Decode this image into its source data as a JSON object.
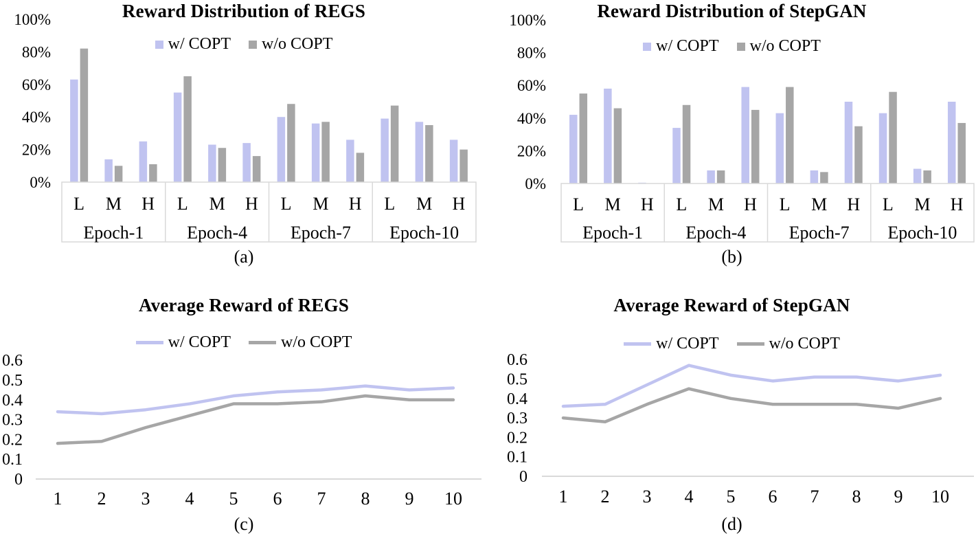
{
  "page": {
    "background": "#ffffff"
  },
  "colors": {
    "with_copt": "#c0c3f0",
    "without_copt": "#a6a6a6",
    "axis_line": "#d9d9d9",
    "text": "#000000"
  },
  "chart_data": [
    {
      "id": "a",
      "type": "bar",
      "title": "Reward Distribution of REGS",
      "caption": "(a)",
      "ylim": [
        0,
        100
      ],
      "y_ticks": [
        "0%",
        "20%",
        "40%",
        "60%",
        "80%",
        "100%"
      ],
      "groups": [
        "Epoch-1",
        "Epoch-4",
        "Epoch-7",
        "Epoch-10"
      ],
      "sub_categories": [
        "L",
        "M",
        "H"
      ],
      "value_order": "L,M,H for each epoch group in sequence",
      "legend_position": "top-inside",
      "grid": false,
      "series": [
        {
          "name": "w/ COPT",
          "values": [
            63,
            14,
            25,
            55,
            23,
            24,
            40,
            36,
            26,
            39,
            37,
            26
          ]
        },
        {
          "name": "w/o COPT",
          "values": [
            82,
            10,
            11,
            65,
            21,
            16,
            48,
            37,
            18,
            47,
            35,
            20
          ]
        }
      ]
    },
    {
      "id": "b",
      "type": "bar",
      "title": "Reward Distribution of StepGAN",
      "caption": "(b)",
      "ylim": [
        0,
        100
      ],
      "y_ticks": [
        "0%",
        "20%",
        "40%",
        "60%",
        "80%",
        "100%"
      ],
      "groups": [
        "Epoch-1",
        "Epoch-4",
        "Epoch-7",
        "Epoch-10"
      ],
      "sub_categories": [
        "L",
        "M",
        "H"
      ],
      "value_order": "L,M,H for each epoch group in sequence",
      "legend_position": "top-inside",
      "grid": false,
      "series": [
        {
          "name": "w/ COPT",
          "values": [
            42,
            58,
            0.5,
            34,
            8,
            59,
            43,
            8,
            50,
            43,
            9,
            50
          ]
        },
        {
          "name": "w/o COPT",
          "values": [
            55,
            46,
            0,
            48,
            8,
            45,
            59,
            7,
            35,
            56,
            8,
            37
          ]
        }
      ]
    },
    {
      "id": "c",
      "type": "line",
      "title": "Average Reward of REGS",
      "caption": "(c)",
      "ylim": [
        0,
        0.6
      ],
      "y_ticks": [
        "0",
        "0.1",
        "0.2",
        "0.3",
        "0.4",
        "0.5",
        "0.6"
      ],
      "x": [
        1,
        2,
        3,
        4,
        5,
        6,
        7,
        8,
        9,
        10
      ],
      "legend_position": "top-inside",
      "grid": false,
      "series": [
        {
          "name": "w/ COPT",
          "values": [
            0.34,
            0.33,
            0.35,
            0.38,
            0.42,
            0.44,
            0.45,
            0.47,
            0.45,
            0.46
          ]
        },
        {
          "name": "w/o COPT",
          "values": [
            0.18,
            0.19,
            0.26,
            0.32,
            0.38,
            0.38,
            0.39,
            0.42,
            0.4,
            0.4
          ]
        }
      ]
    },
    {
      "id": "d",
      "type": "line",
      "title": "Average Reward of StepGAN",
      "caption": "(d)",
      "ylim": [
        0,
        0.6
      ],
      "y_ticks": [
        "0",
        "0.1",
        "0.2",
        "0.3",
        "0.4",
        "0.5",
        "0.6"
      ],
      "x": [
        1,
        2,
        3,
        4,
        5,
        6,
        7,
        8,
        9,
        10
      ],
      "legend_position": "top-inside",
      "grid": false,
      "series": [
        {
          "name": "w/ COPT",
          "values": [
            0.36,
            0.37,
            0.47,
            0.57,
            0.52,
            0.49,
            0.51,
            0.51,
            0.49,
            0.52
          ]
        },
        {
          "name": "w/o COPT",
          "values": [
            0.3,
            0.28,
            0.37,
            0.45,
            0.4,
            0.37,
            0.37,
            0.37,
            0.35,
            0.4
          ]
        }
      ]
    }
  ]
}
